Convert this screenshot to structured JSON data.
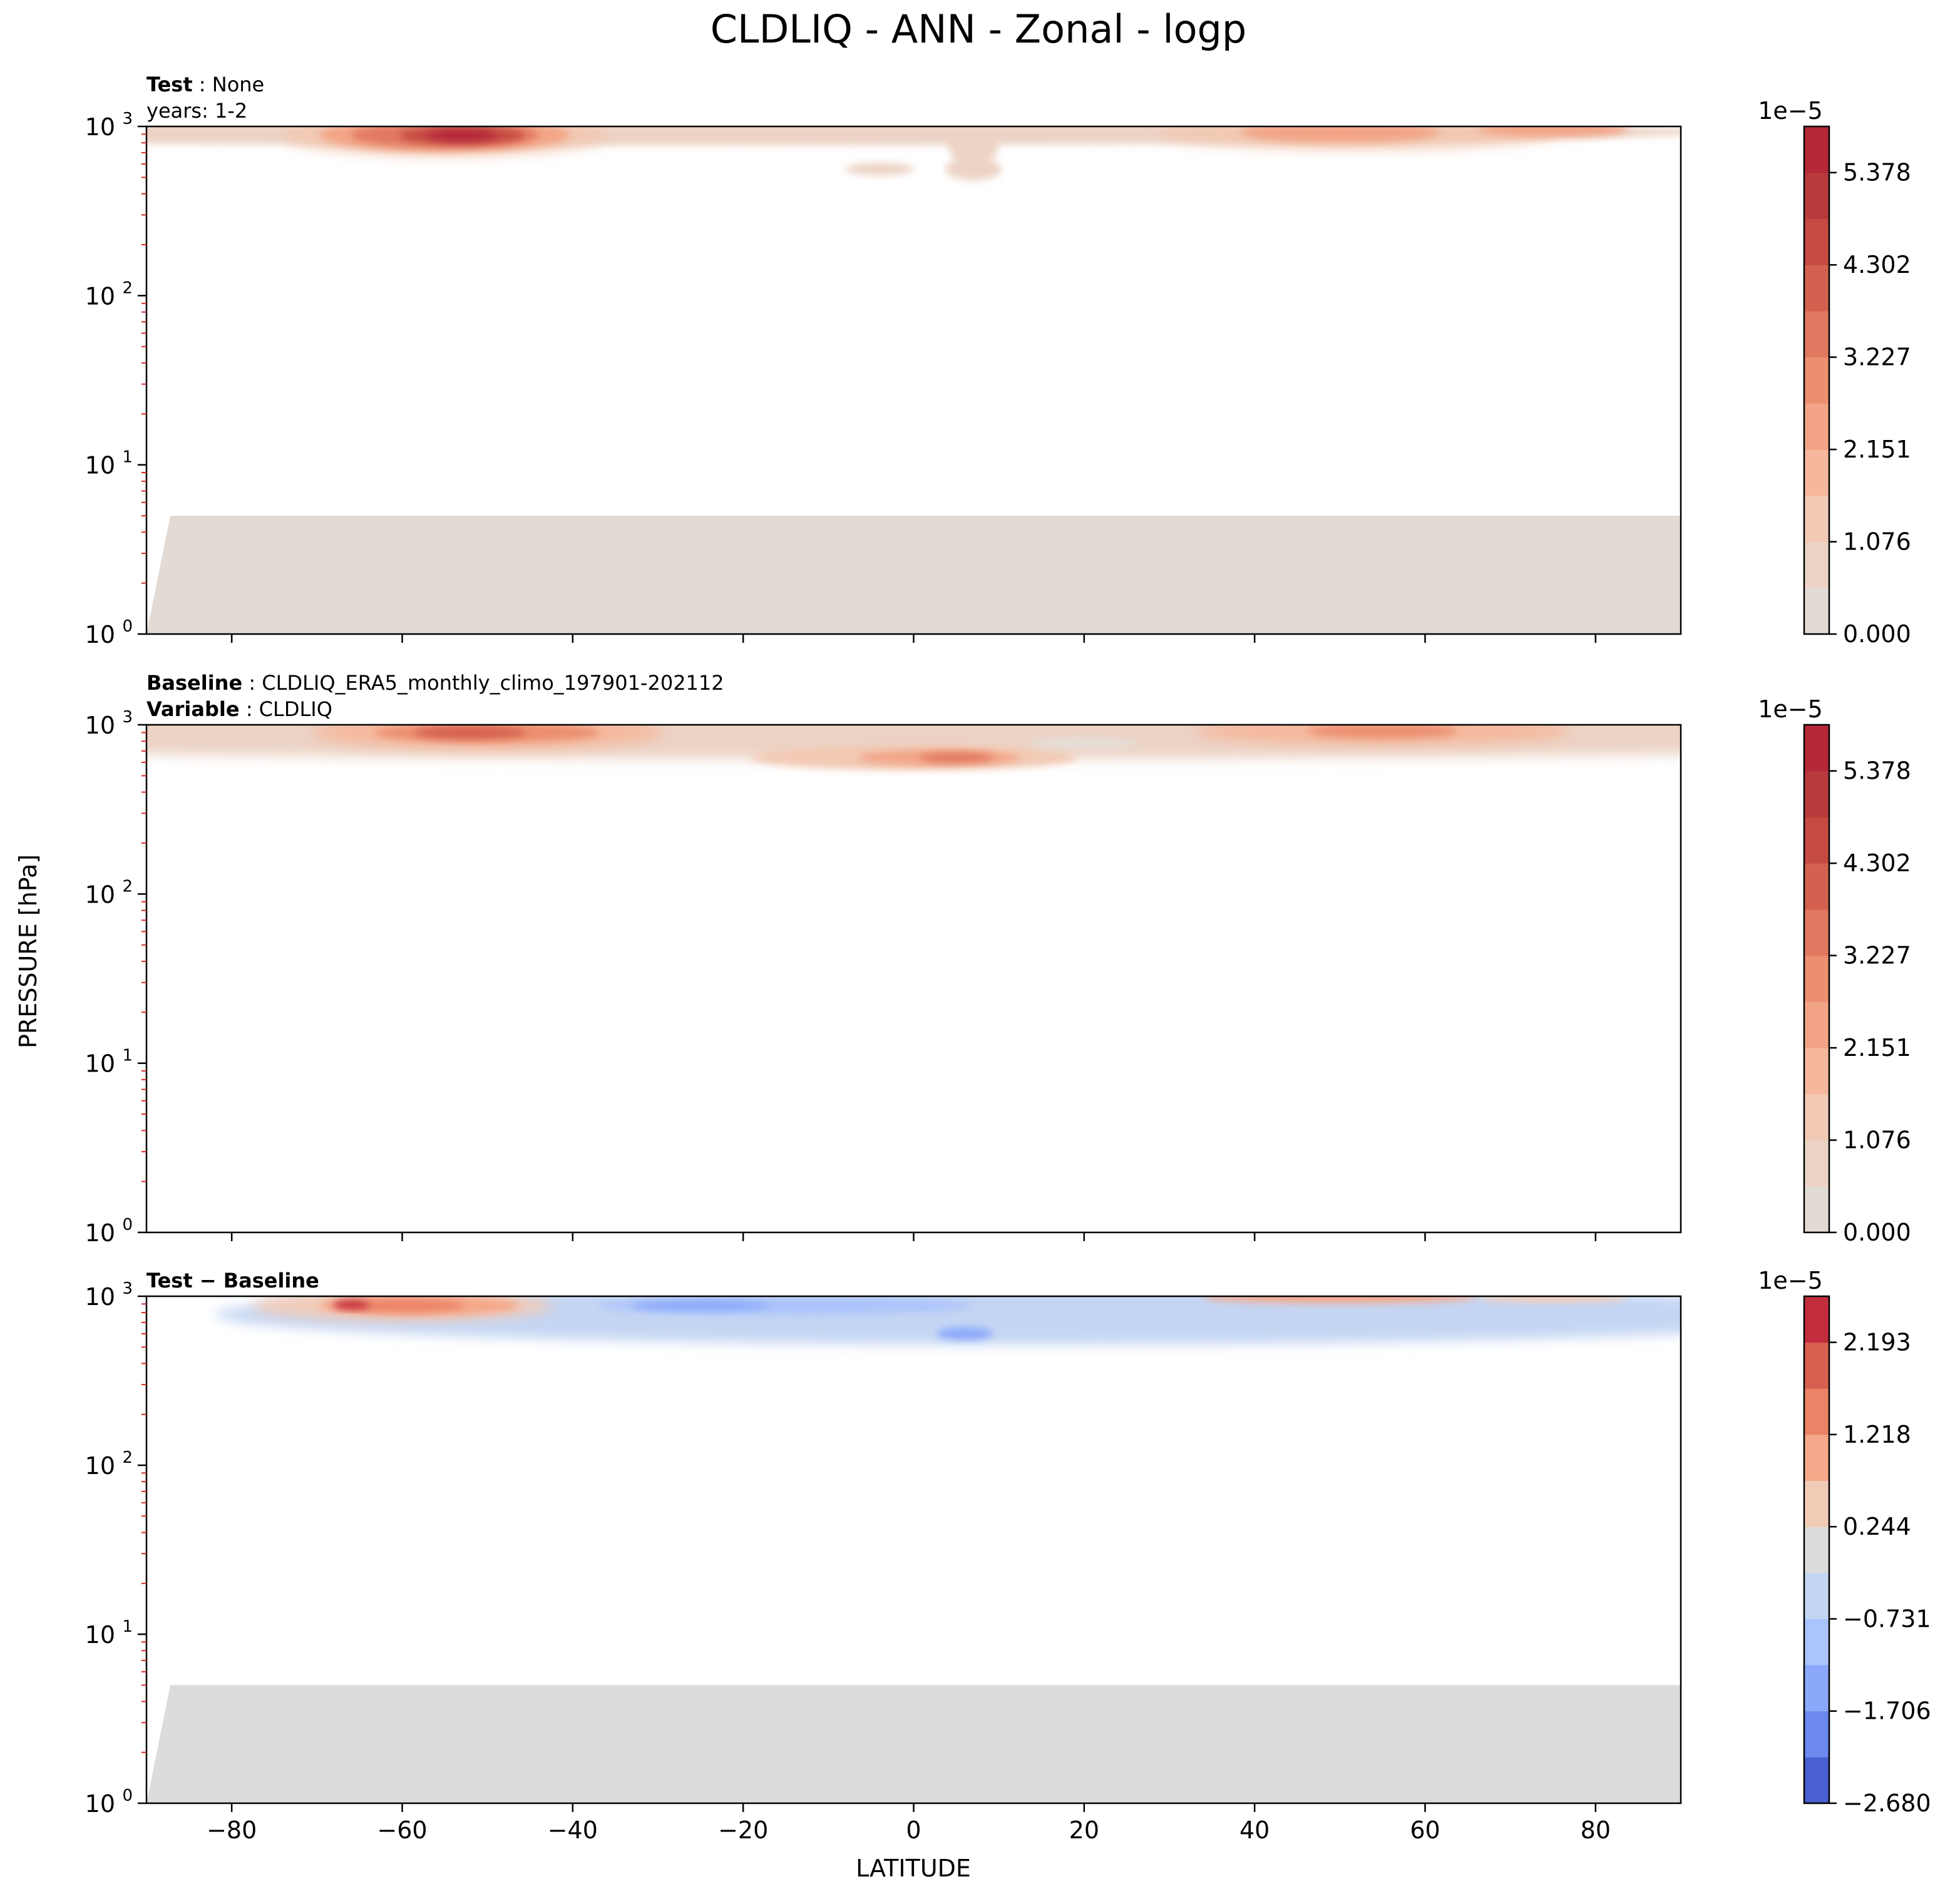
{
  "figure": {
    "title": "CLDLIQ - ANN - Zonal - logp",
    "ylabel": "PRESSURE [hPa]",
    "xlabel": "LATITUDE"
  },
  "chart_data": [
    {
      "type": "heatmap",
      "panel": "test",
      "annotation": [
        {
          "bold": "Test",
          "rest": " : None"
        },
        {
          "bold": "",
          "rest": "years: 1-2"
        }
      ],
      "xlim": [
        -90,
        90
      ],
      "ylim": [
        1000,
        1
      ],
      "yscale": "log",
      "x_ticks": [
        -80,
        -60,
        -40,
        -20,
        0,
        20,
        40,
        60,
        80
      ],
      "y_ticks": [
        "10^0",
        "10^1",
        "10^2",
        "10^3"
      ],
      "data_top_hpa": 5,
      "background_color": "#e2dbd5",
      "colorbar": {
        "offset": "1e−5",
        "tick_labels": [
          "0.000",
          "1.076",
          "2.151",
          "3.227",
          "4.302",
          "5.378"
        ],
        "levels": 11,
        "colors": [
          "#e2dbd5",
          "#ecd3c5",
          "#f2c9b4",
          "#f5b89c",
          "#f3a486",
          "#ec8f70",
          "#e17960",
          "#d46150",
          "#c44a42",
          "#b93a3d",
          "#b4283a"
        ]
      },
      "features": [
        {
          "lat": -55,
          "p_hpa": 880,
          "value": 5.6,
          "note": "southern midlatitude maximum"
        },
        {
          "lat": 50,
          "p_hpa": 900,
          "value": 2.2,
          "note": "northern midlatitude band"
        },
        {
          "lat": 5,
          "p_hpa": 600,
          "value": 1.0,
          "note": "tropical low-level band"
        }
      ]
    },
    {
      "type": "heatmap",
      "panel": "baseline",
      "annotation": [
        {
          "bold": "Baseline",
          "rest": " : CLDLIQ_ERA5_monthly_climo_197901-202112"
        },
        {
          "bold": "Variable",
          "rest": " : CLDLIQ"
        }
      ],
      "xlim": [
        -90,
        90
      ],
      "ylim": [
        1000,
        1
      ],
      "yscale": "log",
      "x_ticks": [
        -80,
        -60,
        -40,
        -20,
        0,
        20,
        40,
        60,
        80
      ],
      "y_ticks": [
        "10^0",
        "10^1",
        "10^2",
        "10^3"
      ],
      "data_top_hpa": 1,
      "background_color": "#e2dbd5",
      "colorbar": {
        "offset": "1e−5",
        "tick_labels": [
          "0.000",
          "1.076",
          "2.151",
          "3.227",
          "4.302",
          "5.378"
        ],
        "levels": 11,
        "colors": [
          "#e2dbd5",
          "#ecd3c5",
          "#f2c9b4",
          "#f5b89c",
          "#f3a486",
          "#ec8f70",
          "#e17960",
          "#d46150",
          "#c44a42",
          "#b93a3d",
          "#b4283a"
        ]
      },
      "features": [
        {
          "lat": -50,
          "p_hpa": 900,
          "value": 3.5,
          "note": "southern midlatitude maximum"
        },
        {
          "lat": 0,
          "p_hpa": 700,
          "value": 3.0,
          "note": "tropical mid-level band"
        },
        {
          "lat": 55,
          "p_hpa": 920,
          "value": 2.2,
          "note": "northern midlatitude band"
        }
      ]
    },
    {
      "type": "heatmap",
      "panel": "difference",
      "annotation": [
        {
          "bold": "Test − Baseline",
          "rest": ""
        }
      ],
      "xlim": [
        -90,
        90
      ],
      "ylim": [
        1000,
        1
      ],
      "yscale": "log",
      "x_ticks": [
        -80,
        -60,
        -40,
        -20,
        0,
        20,
        40,
        60,
        80
      ],
      "y_ticks": [
        "10^0",
        "10^1",
        "10^2",
        "10^3"
      ],
      "data_top_hpa": 5,
      "background_color": "#dcdcdc",
      "colorbar": {
        "offset": "1e−5",
        "tick_labels": [
          "−2.680",
          "−1.706",
          "−0.731",
          "0.244",
          "1.218",
          "2.193"
        ],
        "levels": 11,
        "colors": [
          "#4a60d0",
          "#6b89ee",
          "#8ba9fb",
          "#abc4fb",
          "#c4d5f3",
          "#dcdcdc",
          "#f2cbb7",
          "#f5a889",
          "#ec8366",
          "#d8604e",
          "#c22d3d"
        ]
      },
      "features": [
        {
          "lat": -60,
          "p_hpa": 880,
          "value": 2.4,
          "note": "southern midlatitude positive anomaly"
        },
        {
          "lat": 0,
          "p_hpa": 650,
          "value": -0.8,
          "note": "tropical negative anomaly"
        },
        {
          "lat": 50,
          "p_hpa": 980,
          "value": 1.0,
          "note": "northern near-surface positive anomaly"
        }
      ]
    }
  ]
}
